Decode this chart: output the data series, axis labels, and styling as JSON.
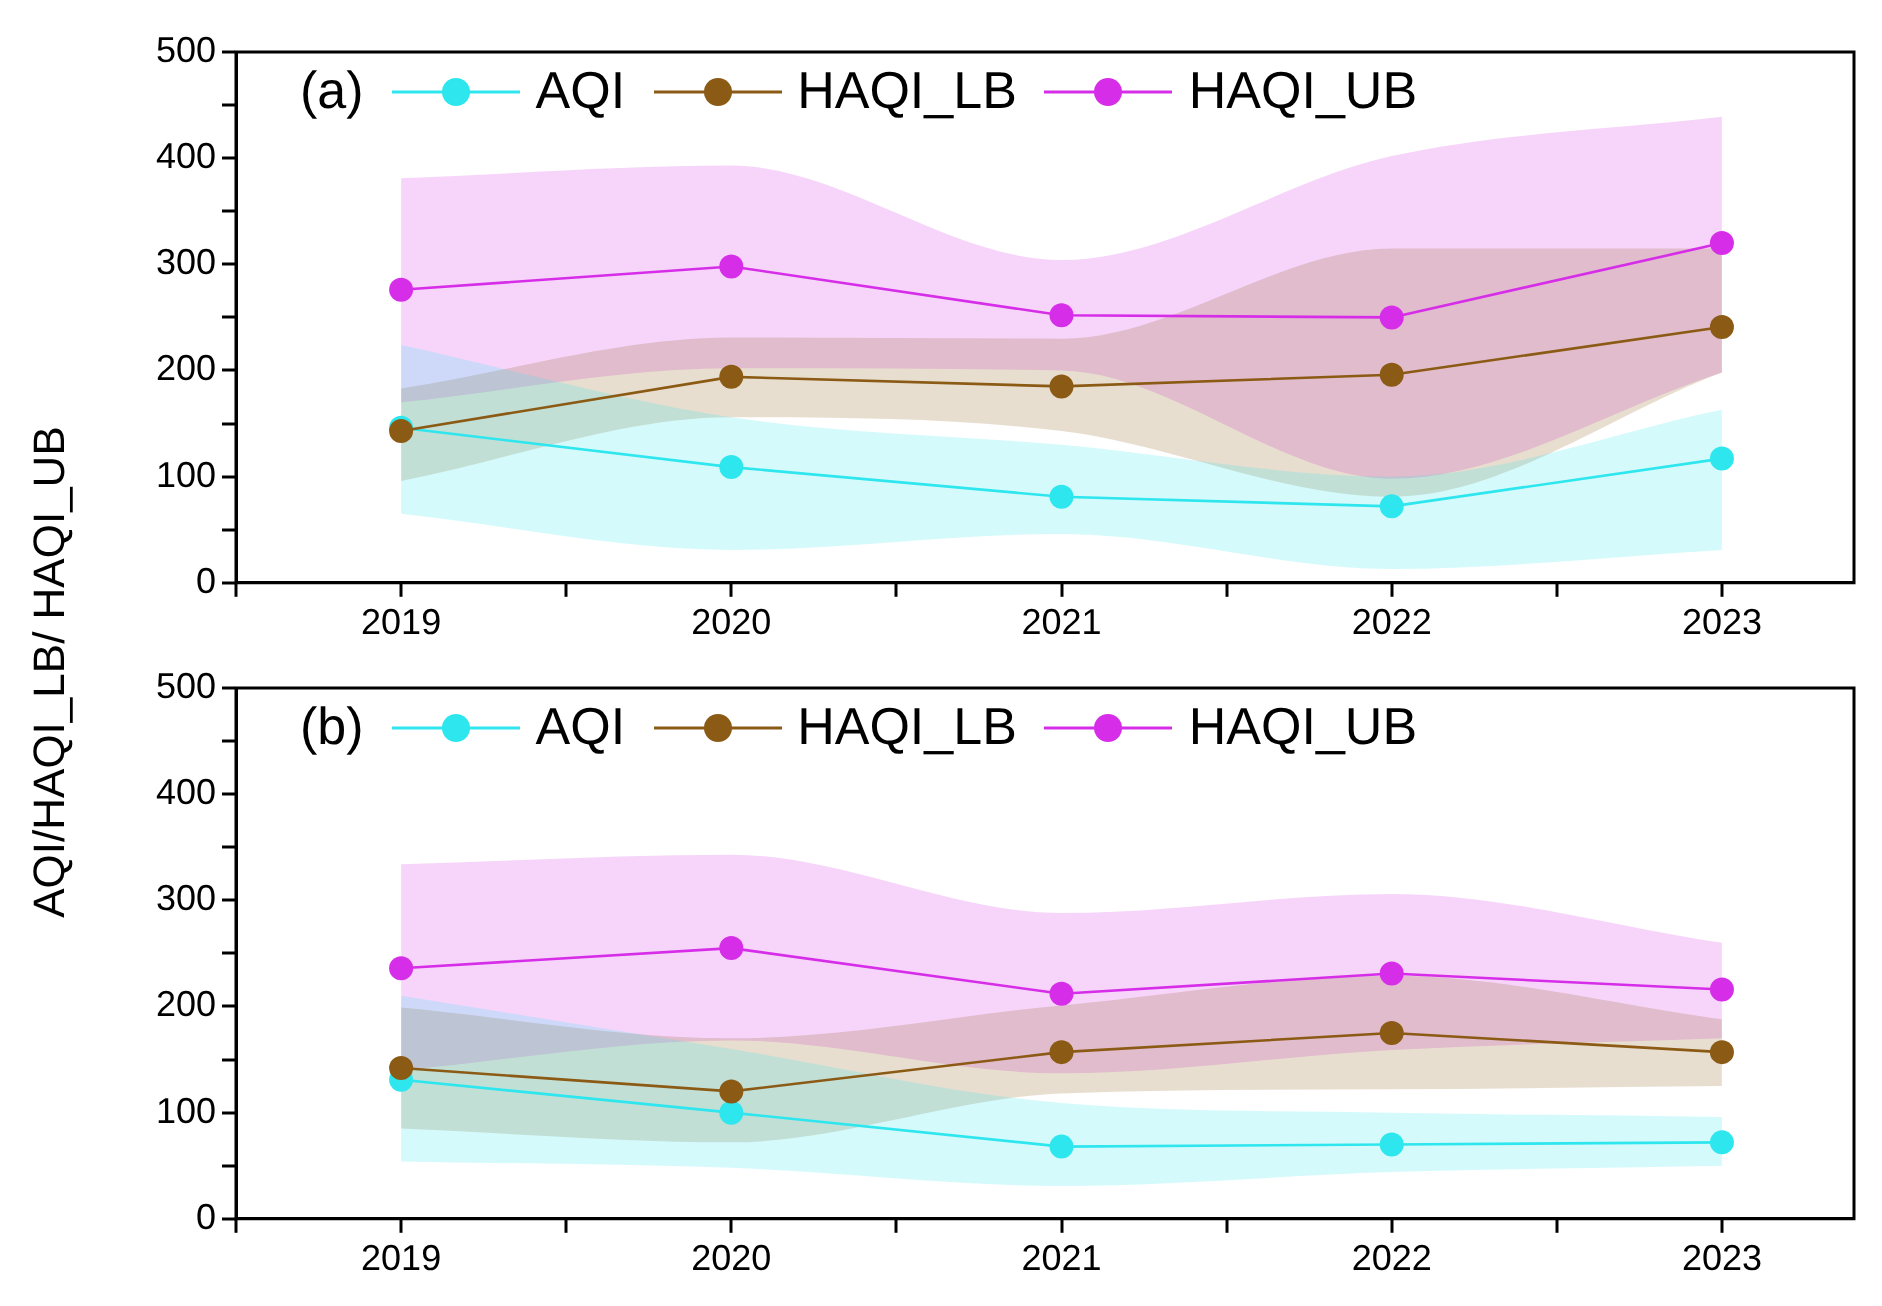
{
  "chart_data": [
    {
      "type": "line",
      "ylabel": "AQI/HAQI_LB/ HAQI_UB",
      "annotations": [
        "(a)"
      ],
      "x": [
        2019,
        2020,
        2021,
        2022,
        2023
      ],
      "xlim": [
        2018.5,
        2023.4
      ],
      "xticks": [
        {
          "value": 2018.5,
          "label": null
        },
        2019,
        {
          "value": 2019.5,
          "label": null
        },
        2020,
        {
          "value": 2020.5,
          "label": null
        },
        2021,
        {
          "value": 2021.5,
          "label": null
        },
        2022,
        {
          "value": 2022.5,
          "label": null
        },
        2023
      ],
      "ylim": [
        0,
        500
      ],
      "yticks": [
        0,
        {
          "value": 50,
          "label": null
        },
        100,
        {
          "value": 150,
          "label": null
        },
        200,
        {
          "value": 250,
          "label": null
        },
        300,
        {
          "value": 350,
          "label": null
        },
        400,
        {
          "value": 450,
          "label": null
        },
        500
      ],
      "grid": false,
      "legend": "top left",
      "marker": "circle",
      "line_style": "solid",
      "series": [
        {
          "name": "AQI",
          "color": "#2ee6ee",
          "values": [
            146,
            109,
            81,
            72,
            117
          ],
          "lower": [
            65,
            31,
            46,
            13,
            31
          ],
          "upper": [
            224,
            156,
            130,
            100,
            163
          ]
        },
        {
          "name": "HAQI_LB",
          "color": "#8b5a14",
          "values": [
            143,
            194,
            185,
            196,
            241
          ],
          "lower": [
            96,
            156,
            143,
            81,
            198
          ],
          "upper": [
            183,
            231,
            230,
            315,
            315
          ]
        },
        {
          "name": "HAQI_UB",
          "color": "#d62ee8",
          "values": [
            276,
            298,
            252,
            250,
            320
          ],
          "lower": [
            170,
            202,
            200,
            98,
            198
          ],
          "upper": [
            381,
            393,
            304,
            402,
            439
          ]
        }
      ]
    },
    {
      "type": "line",
      "annotations": [
        "(b)"
      ],
      "x": [
        2019,
        2020,
        2021,
        2022,
        2023
      ],
      "xlim": [
        2018.5,
        2023.4
      ],
      "xticks": [
        {
          "value": 2018.5,
          "label": null
        },
        2019,
        {
          "value": 2019.5,
          "label": null
        },
        2020,
        {
          "value": 2020.5,
          "label": null
        },
        2021,
        {
          "value": 2021.5,
          "label": null
        },
        2022,
        {
          "value": 2022.5,
          "label": null
        },
        2023
      ],
      "ylim": [
        0,
        500
      ],
      "yticks": [
        0,
        {
          "value": 50,
          "label": null
        },
        100,
        {
          "value": 150,
          "label": null
        },
        200,
        {
          "value": 250,
          "label": null
        },
        300,
        {
          "value": 350,
          "label": null
        },
        400,
        {
          "value": 450,
          "label": null
        },
        500
      ],
      "grid": false,
      "legend": "top left",
      "marker": "circle",
      "line_style": "solid",
      "series": [
        {
          "name": "AQI",
          "color": "#2ee6ee",
          "values": [
            131,
            100,
            68,
            70,
            72
          ],
          "lower": [
            54,
            48,
            31,
            44,
            50
          ],
          "upper": [
            210,
            160,
            109,
            100,
            96
          ]
        },
        {
          "name": "HAQI_LB",
          "color": "#8b5a14",
          "values": [
            142,
            120,
            157,
            175,
            157
          ],
          "lower": [
            85,
            72,
            118,
            122,
            125
          ],
          "upper": [
            199,
            170,
            201,
            229,
            188
          ]
        },
        {
          "name": "HAQI_UB",
          "color": "#d62ee8",
          "values": [
            236,
            255,
            212,
            231,
            216
          ],
          "lower": [
            140,
            168,
            137,
            159,
            170
          ],
          "upper": [
            334,
            343,
            288,
            306,
            260
          ]
        }
      ]
    }
  ]
}
